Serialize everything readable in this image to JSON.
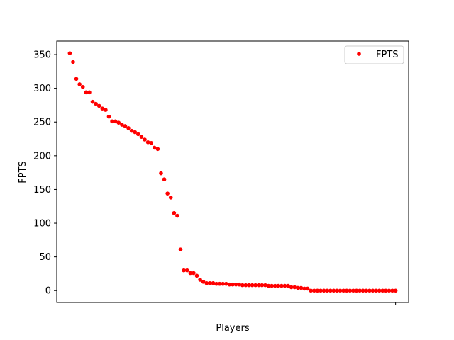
{
  "chart_data": {
    "type": "scatter",
    "title": "",
    "xlabel": "Players",
    "ylabel": "FPTS",
    "ylim": [
      -17.6,
      370
    ],
    "xlim": [
      -4,
      104
    ],
    "yticks": [
      0,
      50,
      100,
      150,
      200,
      250,
      300,
      350
    ],
    "xticks": [
      100
    ],
    "x_tick_labels_visible": false,
    "grid": false,
    "legend": {
      "position": "top-right",
      "entries": [
        "FPTS"
      ]
    },
    "marker": "circle",
    "color": "#ff0000",
    "series": [
      {
        "name": "FPTS",
        "color": "#ff0000",
        "values": [
          352,
          339,
          314,
          306,
          302,
          294,
          294,
          280,
          277,
          274,
          270,
          268,
          258,
          251,
          251,
          249,
          246,
          244,
          241,
          237,
          235,
          232,
          228,
          224,
          220,
          219,
          212,
          210,
          174,
          165,
          144,
          138,
          115,
          111,
          61,
          30,
          30,
          26,
          26,
          22,
          16,
          13,
          11,
          11,
          11,
          10,
          10,
          10,
          10,
          9,
          9,
          9,
          9,
          8,
          8,
          8,
          8,
          8,
          8,
          8,
          8,
          7,
          7,
          7,
          7,
          7,
          7,
          7,
          5,
          5,
          4,
          4,
          3,
          3,
          0,
          0,
          0,
          0,
          0,
          0,
          0,
          0,
          0,
          0,
          0,
          0,
          0,
          0,
          0,
          0,
          0,
          0,
          0,
          0,
          0,
          0,
          0,
          0,
          0,
          0,
          0
        ]
      }
    ]
  }
}
